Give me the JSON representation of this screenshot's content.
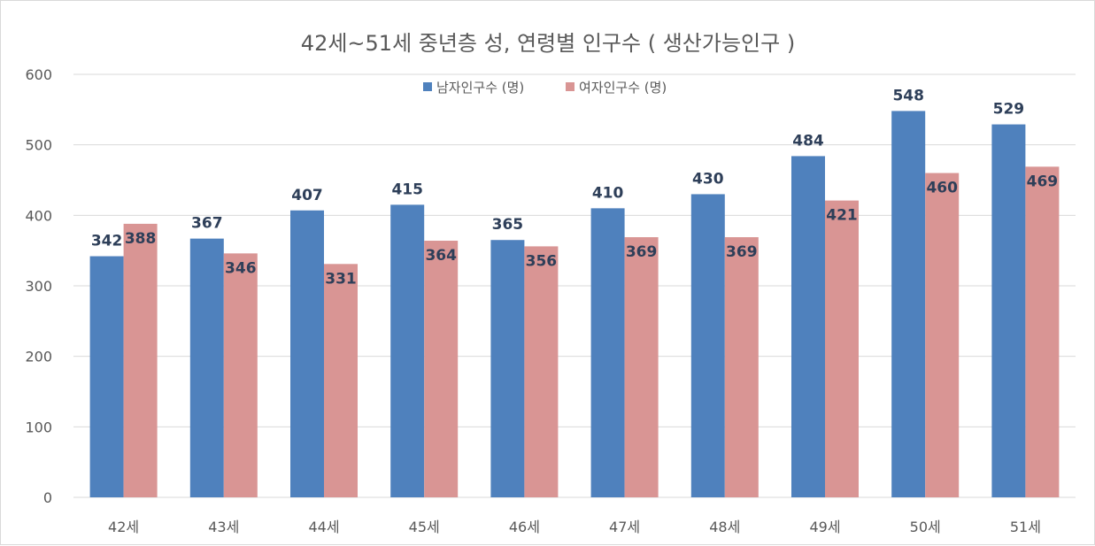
{
  "chart_data": {
    "type": "bar",
    "title": "42세~51세 중년층 성, 연령별 인구수 ( 생산가능인구 )",
    "xlabel": "",
    "ylabel": "",
    "categories": [
      "42세",
      "43세",
      "44세",
      "45세",
      "46세",
      "47세",
      "48세",
      "49세",
      "50세",
      "51세"
    ],
    "series": [
      {
        "name": "남자인구수 (명)",
        "color": "#4f81bd",
        "values": [
          342,
          367,
          407,
          415,
          365,
          410,
          430,
          484,
          548,
          529
        ]
      },
      {
        "name": "여자인구수 (명)",
        "color": "#d99594",
        "values": [
          388,
          346,
          331,
          364,
          356,
          369,
          369,
          421,
          460,
          469
        ]
      }
    ],
    "ylim": [
      0,
      600
    ],
    "yticks": [
      0,
      100,
      200,
      300,
      400,
      500,
      600
    ],
    "grid": true,
    "legend_position": "top-center",
    "data_labels": true
  }
}
